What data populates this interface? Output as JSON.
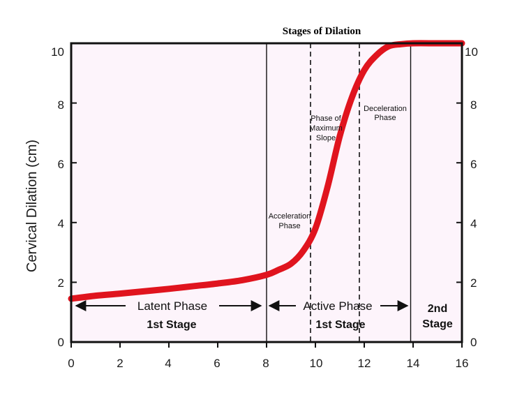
{
  "chart_data": {
    "type": "line",
    "title": "Stages of Dilation",
    "xlabel": "",
    "ylabel": "Cervical Dilation (cm)",
    "xlim": [
      0,
      16
    ],
    "ylim": [
      0,
      10
    ],
    "x_ticks": [
      "0",
      "2",
      "4",
      "6",
      "8",
      "10",
      "12",
      "14",
      "16"
    ],
    "y_ticks": [
      "0",
      "2",
      "4",
      "6",
      "8",
      "10"
    ],
    "y_ticks_right": [
      "0",
      "2",
      "4",
      "6",
      "8",
      "10"
    ],
    "series": [
      {
        "name": "Cervical dilation",
        "color": "#e0141e",
        "x": [
          0,
          1,
          2,
          3,
          4,
          5,
          6,
          7,
          8,
          8.5,
          9,
          9.5,
          10,
          10.5,
          11,
          11.5,
          12,
          12.5,
          13,
          13.5,
          14,
          15,
          16
        ],
        "y": [
          1.45,
          1.55,
          1.62,
          1.7,
          1.78,
          1.87,
          1.96,
          2.07,
          2.25,
          2.42,
          2.62,
          3.05,
          3.8,
          5.2,
          6.9,
          8.2,
          9.1,
          9.6,
          9.9,
          9.97,
          10,
          10,
          10
        ]
      }
    ],
    "vertical_lines": [
      {
        "x": 8,
        "style": "solid"
      },
      {
        "x": 9.8,
        "style": "dashed"
      },
      {
        "x": 11.8,
        "style": "dashed"
      },
      {
        "x": 13.9,
        "style": "solid"
      }
    ],
    "annotations": {
      "acceleration": [
        "Acceleration",
        "Phase"
      ],
      "max_slope": [
        "Phase of",
        "Maximum",
        "Slope"
      ],
      "deceleration": [
        "Deceleration",
        "Phase"
      ],
      "latent_phase": "Latent Phase",
      "active_phase": "Active Phase",
      "first_stage_left": "1st Stage",
      "first_stage_right": "1st Stage",
      "second_stage": [
        "2nd",
        "Stage"
      ]
    }
  }
}
